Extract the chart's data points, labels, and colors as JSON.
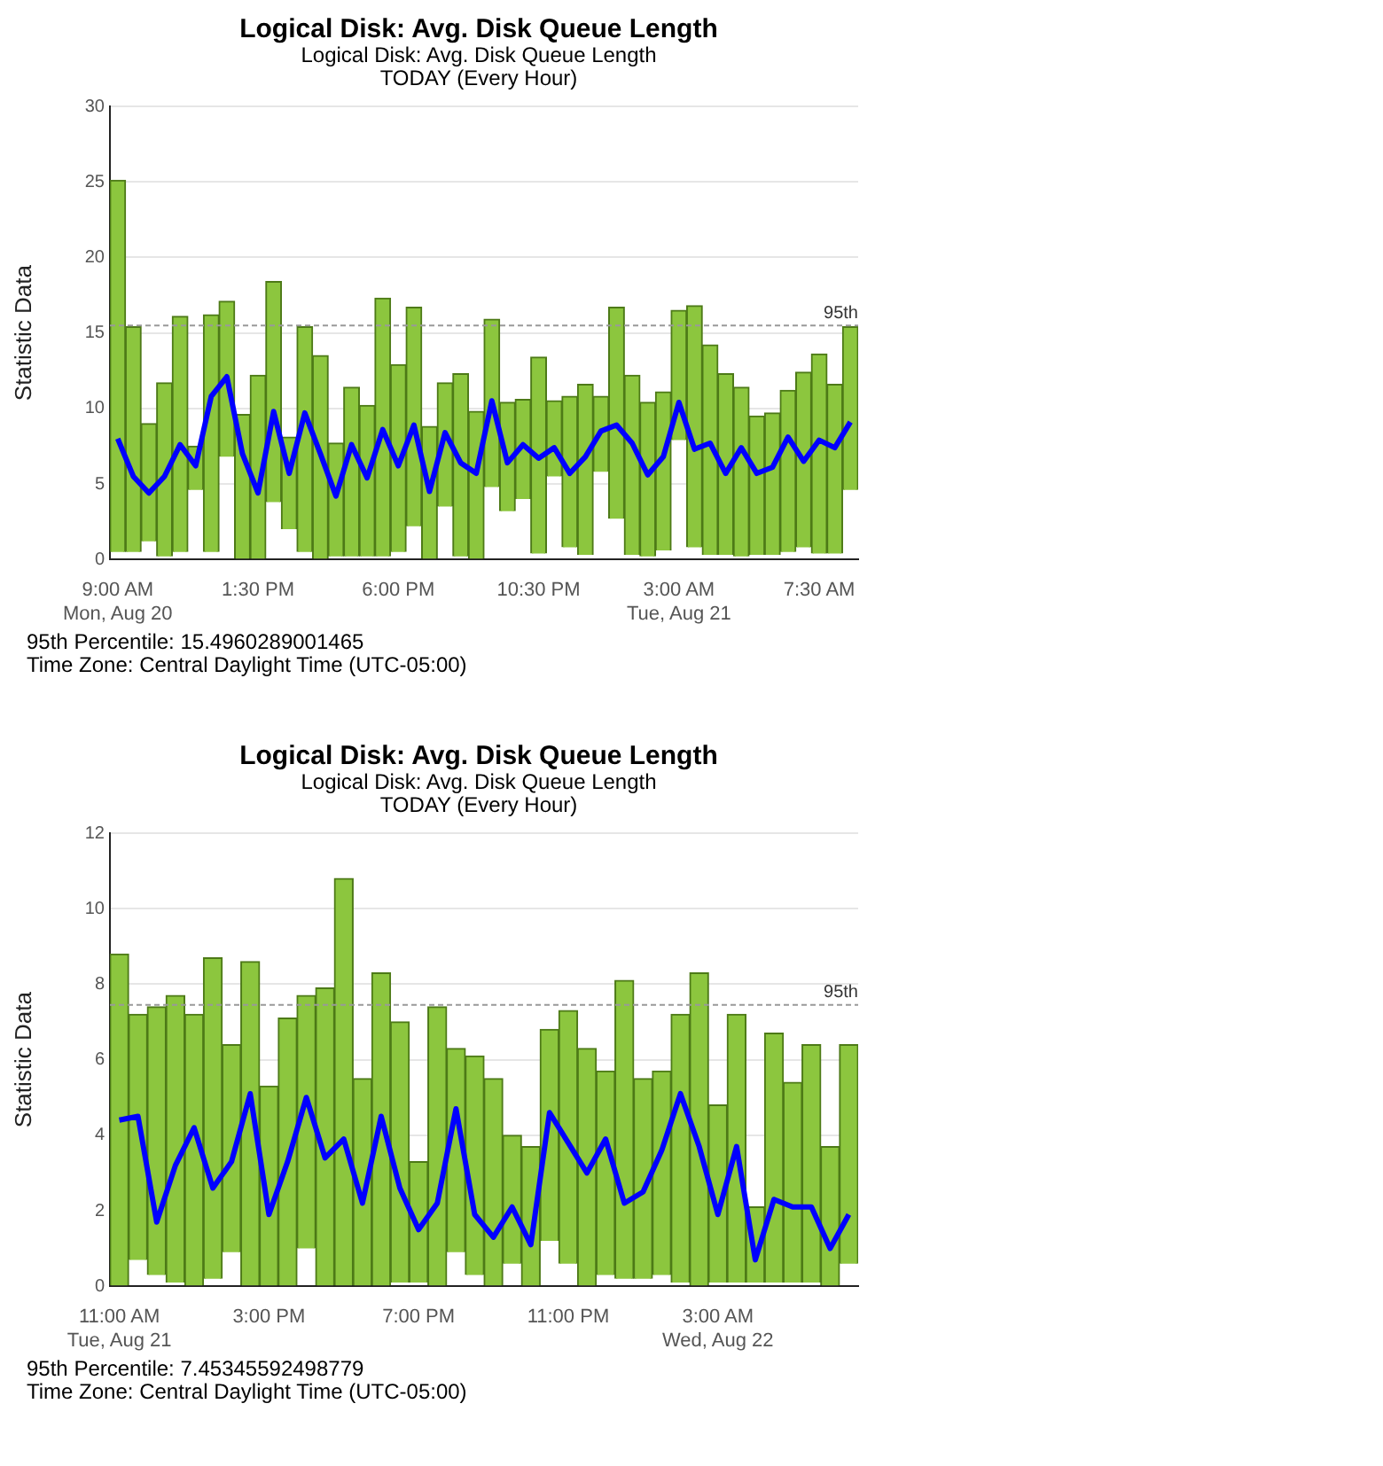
{
  "chart_data": [
    {
      "type": "bar",
      "title": "Logical Disk: Avg. Disk Queue Length",
      "subtitle": "Logical Disk: Avg. Disk Queue Length\nTODAY (Every Hour)",
      "ylabel": "Statistic Data",
      "x": [
        "--08-20T09:00",
        "--08-20T09:30",
        "--08-20T10:00",
        "--08-20T10:30",
        "--08-20T11:00",
        "--08-20T11:30",
        "--08-20T12:00",
        "--08-20T12:30",
        "--08-20T13:00",
        "--08-20T13:30",
        "--08-20T14:00",
        "--08-20T14:30",
        "--08-20T15:00",
        "--08-20T15:30",
        "--08-20T16:00",
        "--08-20T16:30",
        "--08-20T17:00",
        "--08-20T17:30",
        "--08-20T18:00",
        "--08-20T18:30",
        "--08-20T19:00",
        "--08-20T19:30",
        "--08-20T20:00",
        "--08-20T20:30",
        "--08-20T21:00",
        "--08-20T21:30",
        "--08-20T22:00",
        "--08-20T22:30",
        "--08-20T23:00",
        "--08-20T23:30",
        "--08-21T00:00",
        "--08-21T00:30",
        "--08-21T01:00",
        "--08-21T01:30",
        "--08-21T02:00",
        "--08-21T02:30",
        "--08-21T03:00",
        "--08-21T03:30",
        "--08-21T04:00",
        "--08-21T04:30",
        "--08-21T05:00",
        "--08-21T05:30",
        "--08-21T06:00",
        "--08-21T06:30",
        "--08-21T07:00",
        "--08-21T07:30",
        "--08-21T08:00",
        "--08-21T08:30"
      ],
      "series": [
        {
          "color": "#8cc63e",
          "base": [
            0.5,
            0.5,
            1.2,
            0.2,
            0.5,
            4.6,
            0.5,
            6.8,
            0,
            0,
            3.8,
            2.0,
            0.5,
            0,
            0.2,
            0.2,
            0.2,
            0.2,
            0.5,
            2.2,
            0,
            3.5,
            0.2,
            0,
            4.8,
            3.2,
            4.0,
            0.4,
            5.5,
            0.8,
            0.3,
            5.8,
            2.7,
            0.3,
            0.2,
            0.6,
            7.9,
            0.8,
            0.3,
            0.3,
            0.2,
            0.3,
            0.3,
            0.5,
            0.8,
            0.4,
            0.4,
            4.6
          ],
          "values": [
            24.6,
            14.9,
            7.8,
            11.5,
            15.6,
            2.9,
            15.7,
            10.3,
            9.6,
            12.2,
            14.6,
            6.1,
            14.9,
            13.5,
            7.5,
            11.2,
            10.0,
            17.1,
            12.4,
            14.5,
            8.8,
            8.2,
            12.1,
            9.8,
            11.1,
            7.2,
            6.6,
            13.0,
            5.0,
            10.0,
            11.3,
            5.0,
            14.0,
            11.9,
            10.2,
            10.5,
            8.6,
            16.0,
            13.9,
            12.0,
            11.2,
            9.2,
            9.4,
            10.7,
            11.6,
            13.2,
            11.2,
            10.8
          ]
        },
        {
          "type": "line",
          "color": "#0000ff",
          "values": [
            8.0,
            5.5,
            4.4,
            5.5,
            7.6,
            6.2,
            10.8,
            12.1,
            7.0,
            4.4,
            9.8,
            5.7,
            9.7,
            7.0,
            4.2,
            7.6,
            5.4,
            8.6,
            6.2,
            8.9,
            4.5,
            8.4,
            6.4,
            5.7,
            10.5,
            6.4,
            7.6,
            6.7,
            7.4,
            5.7,
            6.8,
            8.5,
            8.9,
            7.7,
            5.6,
            6.8,
            10.4,
            7.3,
            7.7,
            5.7,
            7.4,
            5.7,
            6.1,
            8.1,
            6.5,
            7.9,
            7.4,
            9.1
          ]
        }
      ],
      "xlim": [
        "--08-20T08:45",
        "--08-21T08:45"
      ],
      "xticks": [
        {
          "value": "--08-20T09:00",
          "label": "9:00 AM\nMon, Aug 20"
        },
        {
          "value": "--08-20T13:30",
          "label": "1:30 PM"
        },
        {
          "value": "--08-20T18:00",
          "label": "6:00 PM"
        },
        {
          "value": "--08-20T22:30",
          "label": "10:30 PM"
        },
        {
          "value": "--08-21T03:00",
          "label": "3:00 AM\nTue, Aug 21"
        },
        {
          "value": "--08-21T07:30",
          "label": "7:30 AM"
        }
      ],
      "ylim": [
        0,
        30
      ],
      "yticks": [
        0,
        5,
        10,
        15,
        20,
        25,
        30
      ],
      "grid": "y",
      "ref_lines": [
        {
          "axis": "y",
          "value": 15.4960289001465,
          "label": "95th",
          "color": "#999999",
          "line_style": "dashed"
        }
      ],
      "annotations": [
        "95th Percentile: 15.4960289001465",
        "Time Zone: Central Daylight Time (UTC-05:00)"
      ]
    },
    {
      "type": "bar",
      "title": "Logical Disk: Avg. Disk Queue Length",
      "subtitle": "Logical Disk: Avg. Disk Queue Length\nTODAY (Every Hour)",
      "ylabel": "Statistic Data",
      "x": [
        "--08-21T11:00",
        "--08-21T11:30",
        "--08-21T12:00",
        "--08-21T12:30",
        "--08-21T13:00",
        "--08-21T13:30",
        "--08-21T14:00",
        "--08-21T14:30",
        "--08-21T15:00",
        "--08-21T15:30",
        "--08-21T16:00",
        "--08-21T16:30",
        "--08-21T17:00",
        "--08-21T17:30",
        "--08-21T18:00",
        "--08-21T18:30",
        "--08-21T19:00",
        "--08-21T19:30",
        "--08-21T20:00",
        "--08-21T20:30",
        "--08-21T21:00",
        "--08-21T21:30",
        "--08-21T22:00",
        "--08-21T22:30",
        "--08-21T23:00",
        "--08-21T23:30",
        "--08-22T00:00",
        "--08-22T00:30",
        "--08-22T01:00",
        "--08-22T01:30",
        "--08-22T02:00",
        "--08-22T02:30",
        "--08-22T03:00",
        "--08-22T03:30",
        "--08-22T04:00",
        "--08-22T04:30",
        "--08-22T05:00",
        "--08-22T05:30",
        "--08-22T06:00",
        "--08-22T06:30"
      ],
      "series": [
        {
          "color": "#8cc63e",
          "base": [
            0,
            0.7,
            0.3,
            0.1,
            0,
            0.2,
            0.9,
            0,
            0,
            0,
            1.0,
            0,
            0,
            0,
            0,
            0.1,
            0.1,
            0,
            0.9,
            0.3,
            0,
            0.6,
            0,
            1.2,
            0.6,
            0,
            0.3,
            0.2,
            0.2,
            0.3,
            0.1,
            0,
            0.1,
            0.1,
            0.1,
            0.1,
            0.1,
            0.1,
            0,
            0.6
          ],
          "values": [
            8.8,
            6.5,
            7.1,
            7.6,
            7.2,
            8.5,
            5.5,
            8.6,
            5.3,
            7.1,
            6.7,
            7.9,
            10.8,
            5.5,
            8.3,
            6.9,
            3.2,
            7.4,
            5.4,
            5.8,
            5.5,
            3.4,
            3.7,
            5.6,
            6.7,
            6.3,
            5.4,
            7.9,
            5.3,
            5.4,
            7.1,
            8.3,
            4.7,
            7.1,
            2.0,
            6.6,
            5.3,
            6.3,
            3.7,
            5.8
          ]
        },
        {
          "type": "line",
          "color": "#0000ff",
          "values": [
            4.4,
            4.5,
            1.7,
            3.2,
            4.2,
            2.6,
            3.3,
            5.1,
            1.9,
            3.3,
            5.0,
            3.4,
            3.9,
            2.2,
            4.5,
            2.6,
            1.5,
            2.2,
            4.7,
            1.9,
            1.3,
            2.1,
            1.1,
            4.6,
            3.8,
            3.0,
            3.9,
            2.2,
            2.5,
            3.6,
            5.1,
            3.7,
            1.9,
            3.7,
            0.7,
            2.3,
            2.1,
            2.1,
            1.0,
            1.9
          ]
        }
      ],
      "xlim": [
        "--08-21T10:45",
        "--08-22T06:45"
      ],
      "xticks": [
        {
          "value": "--08-21T11:00",
          "label": "11:00 AM\nTue, Aug 21"
        },
        {
          "value": "--08-21T15:00",
          "label": "3:00 PM"
        },
        {
          "value": "--08-21T19:00",
          "label": "7:00 PM"
        },
        {
          "value": "--08-21T23:00",
          "label": "11:00 PM"
        },
        {
          "value": "--08-22T03:00",
          "label": "3:00 AM\nWed, Aug 22"
        }
      ],
      "ylim": [
        0,
        12
      ],
      "yticks": [
        0,
        2,
        4,
        6,
        8,
        10,
        12
      ],
      "grid": "y",
      "ref_lines": [
        {
          "axis": "y",
          "value": 7.45345592498779,
          "label": "95th",
          "color": "#999999",
          "line_style": "dashed"
        }
      ],
      "annotations": [
        "95th Percentile: 7.45345592498779",
        "Time Zone: Central Daylight Time (UTC-05:00)"
      ]
    }
  ]
}
